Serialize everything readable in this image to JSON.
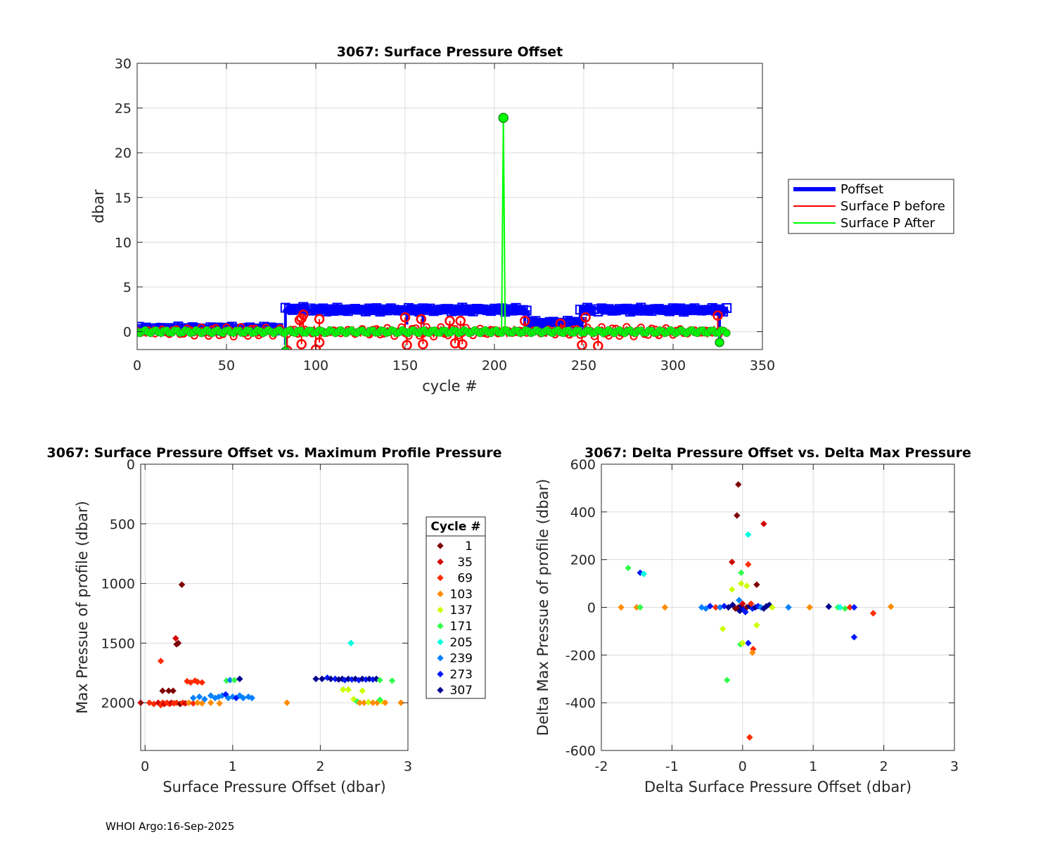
{
  "footer": "WHOI Argo:16-Sep-2025",
  "chart_data": [
    {
      "type": "line",
      "title": "3067: Surface Pressure Offset",
      "xlabel": "cycle #",
      "ylabel": "dbar",
      "xlim": [
        0,
        350
      ],
      "ylim": [
        -2,
        30
      ],
      "xticks": [
        0,
        50,
        100,
        150,
        200,
        250,
        300,
        350
      ],
      "yticks": [
        0,
        5,
        10,
        15,
        20,
        25,
        30
      ],
      "grid": true,
      "legend": {
        "placement": "right",
        "entries": [
          "Poffset",
          "Surface P before",
          "Surface P After"
        ]
      },
      "series": [
        {
          "name": "Poffset",
          "color": "#0000ff",
          "segments": [
            {
              "x": [
                1,
                80
              ],
              "y": 0.35
            },
            {
              "x": [
                83,
                97
              ],
              "y": 2.55
            },
            {
              "x": [
                98,
                218
              ],
              "y": 2.45
            },
            {
              "x": [
                219,
                250
              ],
              "y": 1.0
            },
            {
              "x": [
                248,
                256
              ],
              "y": 2.45
            },
            {
              "x": [
                258,
                330
              ],
              "y": 2.45
            }
          ],
          "spikes_down": [
            {
              "x": 83,
              "y": -1.5
            },
            {
              "x": 151,
              "y": 0.8
            },
            {
              "x": 160,
              "y": 0.8
            },
            {
              "x": 217,
              "y": 0.8
            },
            {
              "x": 219,
              "y": 0.0
            },
            {
              "x": 248,
              "y": 1.5
            },
            {
              "x": 326,
              "y": -1.0
            }
          ]
        },
        {
          "name": "Surface P before",
          "color": "#ff0000",
          "baseline": 0.0,
          "markers": [
            {
              "x": 91,
              "y": 1.3
            },
            {
              "x": 92,
              "y": 1.5
            },
            {
              "x": 93,
              "y": 1.9
            },
            {
              "x": 102,
              "y": 1.4
            },
            {
              "x": 150,
              "y": 1.6
            },
            {
              "x": 159,
              "y": 1.4
            },
            {
              "x": 175,
              "y": 1.2
            },
            {
              "x": 181,
              "y": 1.2
            },
            {
              "x": 217,
              "y": 1.2
            },
            {
              "x": 237,
              "y": 0.9
            },
            {
              "x": 251,
              "y": 1.6
            },
            {
              "x": 325,
              "y": 1.8
            },
            {
              "x": 92,
              "y": -1.4
            },
            {
              "x": 100,
              "y": -2.0
            },
            {
              "x": 102,
              "y": -1.2
            },
            {
              "x": 151,
              "y": -1.5
            },
            {
              "x": 160,
              "y": -1.4
            },
            {
              "x": 178,
              "y": -1.3
            },
            {
              "x": 182,
              "y": -1.4
            },
            {
              "x": 249,
              "y": -1.5
            },
            {
              "x": 258,
              "y": -1.6
            },
            {
              "x": 84,
              "y": -2.1
            }
          ]
        },
        {
          "name": "Surface P After",
          "color": "#00ff00",
          "baseline": 0.0,
          "spike": {
            "x": 205,
            "y": 23.9
          },
          "dips": [
            {
              "x": 83,
              "y": -2.2
            },
            {
              "x": 326,
              "y": -1.2
            }
          ]
        }
      ]
    },
    {
      "type": "scatter",
      "title": "3067: Surface Pressure Offset vs. Maximum Profile Pressure",
      "xlabel": "Surface Pressure Offset (dbar)",
      "ylabel": "Max Pressue of profile (dbar)",
      "xlim": [
        -0.05,
        3
      ],
      "ylim": [
        2400,
        0
      ],
      "yreversed": true,
      "xticks": [
        0,
        1,
        2,
        3
      ],
      "yticks": [
        0,
        500,
        1000,
        1500,
        2000
      ],
      "grid": true,
      "legend": {
        "title": "Cycle #",
        "entries": [
          {
            "label": "1",
            "color": "#7f0000"
          },
          {
            "label": "35",
            "color": "#d40000"
          },
          {
            "label": "69",
            "color": "#ff2a00"
          },
          {
            "label": "103",
            "color": "#ff8c00"
          },
          {
            "label": "137",
            "color": "#ccff00"
          },
          {
            "label": "171",
            "color": "#33ff4d"
          },
          {
            "label": "205",
            "color": "#00ffe0"
          },
          {
            "label": "239",
            "color": "#0080ff"
          },
          {
            "label": "273",
            "color": "#0018ff"
          },
          {
            "label": "307",
            "color": "#00008f"
          }
        ]
      },
      "points": [
        {
          "x": -0.05,
          "y": 2000,
          "c": "#d40000"
        },
        {
          "x": 0.05,
          "y": 2000,
          "c": "#ff2a00"
        },
        {
          "x": 0.1,
          "y": 2010,
          "c": "#ff2a00"
        },
        {
          "x": 0.15,
          "y": 2000,
          "c": "#d40000"
        },
        {
          "x": 0.18,
          "y": 2020,
          "c": "#ff2a00"
        },
        {
          "x": 0.2,
          "y": 2000,
          "c": "#ff2a00"
        },
        {
          "x": 0.22,
          "y": 2010,
          "c": "#d40000"
        },
        {
          "x": 0.25,
          "y": 2000,
          "c": "#ff2a00"
        },
        {
          "x": 0.28,
          "y": 2010,
          "c": "#ff2a00"
        },
        {
          "x": 0.3,
          "y": 2000,
          "c": "#d40000"
        },
        {
          "x": 0.33,
          "y": 2005,
          "c": "#ff2a00"
        },
        {
          "x": 0.36,
          "y": 2000,
          "c": "#ff2a00"
        },
        {
          "x": 0.4,
          "y": 2010,
          "c": "#7f0000"
        },
        {
          "x": 0.43,
          "y": 2000,
          "c": "#ff2a00"
        },
        {
          "x": 0.46,
          "y": 2005,
          "c": "#d40000"
        },
        {
          "x": 0.5,
          "y": 2000,
          "c": "#ff8c00"
        },
        {
          "x": 0.55,
          "y": 2005,
          "c": "#ff2a00"
        },
        {
          "x": 0.6,
          "y": 2000,
          "c": "#ff8c00"
        },
        {
          "x": 0.65,
          "y": 2005,
          "c": "#ff8c00"
        },
        {
          "x": 0.75,
          "y": 2000,
          "c": "#ff8c00"
        },
        {
          "x": 0.85,
          "y": 2005,
          "c": "#ff8c00"
        },
        {
          "x": 1.62,
          "y": 2000,
          "c": "#ff8c00"
        },
        {
          "x": 2.92,
          "y": 2000,
          "c": "#ff8c00"
        },
        {
          "x": 0.42,
          "y": 1010,
          "c": "#7f0000"
        },
        {
          "x": 0.35,
          "y": 1460,
          "c": "#d40000"
        },
        {
          "x": 0.36,
          "y": 1510,
          "c": "#7f0000"
        },
        {
          "x": 0.38,
          "y": 1500,
          "c": "#7f0000"
        },
        {
          "x": 0.18,
          "y": 1650,
          "c": "#ff2a00"
        },
        {
          "x": 0.2,
          "y": 1900,
          "c": "#7f0000"
        },
        {
          "x": 0.27,
          "y": 1900,
          "c": "#7f0000"
        },
        {
          "x": 0.32,
          "y": 1900,
          "c": "#7f0000"
        },
        {
          "x": 0.48,
          "y": 1820,
          "c": "#ff2a00"
        },
        {
          "x": 0.52,
          "y": 1830,
          "c": "#ff2a00"
        },
        {
          "x": 0.57,
          "y": 1815,
          "c": "#ff2a00"
        },
        {
          "x": 0.6,
          "y": 1825,
          "c": "#ff2a00"
        },
        {
          "x": 0.65,
          "y": 1830,
          "c": "#ff2a00"
        },
        {
          "x": 0.55,
          "y": 1960,
          "c": "#0080ff"
        },
        {
          "x": 0.62,
          "y": 1950,
          "c": "#0080ff"
        },
        {
          "x": 0.68,
          "y": 1970,
          "c": "#0080ff"
        },
        {
          "x": 0.75,
          "y": 1940,
          "c": "#0080ff"
        },
        {
          "x": 0.8,
          "y": 1960,
          "c": "#0080ff"
        },
        {
          "x": 0.84,
          "y": 1950,
          "c": "#0080ff"
        },
        {
          "x": 0.88,
          "y": 1940,
          "c": "#0080ff"
        },
        {
          "x": 0.92,
          "y": 1930,
          "c": "#0018ff"
        },
        {
          "x": 0.95,
          "y": 1960,
          "c": "#0080ff"
        },
        {
          "x": 1.0,
          "y": 1950,
          "c": "#0080ff"
        },
        {
          "x": 1.04,
          "y": 1960,
          "c": "#0018ff"
        },
        {
          "x": 1.08,
          "y": 1940,
          "c": "#0080ff"
        },
        {
          "x": 1.12,
          "y": 1960,
          "c": "#0080ff"
        },
        {
          "x": 1.18,
          "y": 1950,
          "c": "#0080ff"
        },
        {
          "x": 1.22,
          "y": 1960,
          "c": "#0080ff"
        },
        {
          "x": 0.93,
          "y": 1815,
          "c": "#33ff4d"
        },
        {
          "x": 0.97,
          "y": 1810,
          "c": "#0080ff"
        },
        {
          "x": 1.02,
          "y": 1810,
          "c": "#33ff4d"
        },
        {
          "x": 1.08,
          "y": 1800,
          "c": "#00008f"
        },
        {
          "x": 2.35,
          "y": 1500,
          "c": "#00ffe0"
        },
        {
          "x": 1.95,
          "y": 1800,
          "c": "#00008f"
        },
        {
          "x": 2.02,
          "y": 1800,
          "c": "#00008f"
        },
        {
          "x": 2.08,
          "y": 1790,
          "c": "#0018ff"
        },
        {
          "x": 2.12,
          "y": 1800,
          "c": "#00008f"
        },
        {
          "x": 2.17,
          "y": 1800,
          "c": "#0018ff"
        },
        {
          "x": 2.21,
          "y": 1805,
          "c": "#00008f"
        },
        {
          "x": 2.25,
          "y": 1800,
          "c": "#00008f"
        },
        {
          "x": 2.28,
          "y": 1810,
          "c": "#0018ff"
        },
        {
          "x": 2.32,
          "y": 1800,
          "c": "#00008f"
        },
        {
          "x": 2.36,
          "y": 1805,
          "c": "#0018ff"
        },
        {
          "x": 2.4,
          "y": 1800,
          "c": "#00008f"
        },
        {
          "x": 2.44,
          "y": 1810,
          "c": "#0018ff"
        },
        {
          "x": 2.48,
          "y": 1800,
          "c": "#00008f"
        },
        {
          "x": 2.52,
          "y": 1805,
          "c": "#0018ff"
        },
        {
          "x": 2.56,
          "y": 1800,
          "c": "#00008f"
        },
        {
          "x": 2.6,
          "y": 1805,
          "c": "#0018ff"
        },
        {
          "x": 2.64,
          "y": 1800,
          "c": "#00008f"
        },
        {
          "x": 2.68,
          "y": 1810,
          "c": "#33ff4d"
        },
        {
          "x": 2.82,
          "y": 1815,
          "c": "#33ff4d"
        },
        {
          "x": 2.26,
          "y": 1890,
          "c": "#ccff00"
        },
        {
          "x": 2.32,
          "y": 1890,
          "c": "#ccff00"
        },
        {
          "x": 2.48,
          "y": 1900,
          "c": "#ccff00"
        },
        {
          "x": 2.38,
          "y": 1970,
          "c": "#ccff00"
        },
        {
          "x": 2.42,
          "y": 1990,
          "c": "#33ff4d"
        },
        {
          "x": 2.45,
          "y": 2000,
          "c": "#ff8c00"
        },
        {
          "x": 2.5,
          "y": 2000,
          "c": "#ff8c00"
        },
        {
          "x": 2.55,
          "y": 1995,
          "c": "#ccff00"
        },
        {
          "x": 2.6,
          "y": 2000,
          "c": "#ff8c00"
        },
        {
          "x": 2.65,
          "y": 2000,
          "c": "#ff8c00"
        },
        {
          "x": 2.7,
          "y": 1990,
          "c": "#ccff00"
        },
        {
          "x": 2.68,
          "y": 1975,
          "c": "#33ff4d"
        },
        {
          "x": 2.74,
          "y": 2000,
          "c": "#ff8c00"
        }
      ]
    },
    {
      "type": "scatter",
      "title": "3067: Delta Pressure Offset vs. Delta Max Pressure",
      "xlabel": "Delta Surface Pressure Offset (dbar)",
      "ylabel": "Delta Max Pressue of profile (dbar)",
      "xlim": [
        -2,
        3
      ],
      "ylim": [
        -600,
        600
      ],
      "xticks": [
        -2,
        -1,
        0,
        1,
        2,
        3
      ],
      "yticks": [
        -600,
        -400,
        -200,
        0,
        200,
        400,
        600
      ],
      "grid": true,
      "points": [
        {
          "x": -0.06,
          "y": 515,
          "c": "#7f0000"
        },
        {
          "x": -0.08,
          "y": 385,
          "c": "#7f0000"
        },
        {
          "x": 0.3,
          "y": 350,
          "c": "#d40000"
        },
        {
          "x": 0.08,
          "y": 305,
          "c": "#00ffe0"
        },
        {
          "x": -0.15,
          "y": 190,
          "c": "#d40000"
        },
        {
          "x": 0.08,
          "y": 180,
          "c": "#ff2a00"
        },
        {
          "x": -1.62,
          "y": 165,
          "c": "#33ff4d"
        },
        {
          "x": -1.45,
          "y": 145,
          "c": "#0018ff"
        },
        {
          "x": -1.4,
          "y": 140,
          "c": "#00ffe0"
        },
        {
          "x": -0.02,
          "y": 145,
          "c": "#33ff4d"
        },
        {
          "x": -0.02,
          "y": 100,
          "c": "#ccff00"
        },
        {
          "x": 0.06,
          "y": 90,
          "c": "#ccff00"
        },
        {
          "x": 0.2,
          "y": 95,
          "c": "#7f0000"
        },
        {
          "x": -0.15,
          "y": 75,
          "c": "#ccff00"
        },
        {
          "x": -0.05,
          "y": 30,
          "c": "#0080ff"
        },
        {
          "x": -1.72,
          "y": 0,
          "c": "#ff8c00"
        },
        {
          "x": -1.5,
          "y": 0,
          "c": "#ff8c00"
        },
        {
          "x": -1.45,
          "y": 0,
          "c": "#33ff4d"
        },
        {
          "x": -1.1,
          "y": 0,
          "c": "#ff8c00"
        },
        {
          "x": -0.58,
          "y": 0,
          "c": "#0080ff"
        },
        {
          "x": -0.52,
          "y": -5,
          "c": "#0080ff"
        },
        {
          "x": -0.46,
          "y": 5,
          "c": "#0018ff"
        },
        {
          "x": -0.38,
          "y": 0,
          "c": "#ff2a00"
        },
        {
          "x": -0.32,
          "y": 0,
          "c": "#0080ff"
        },
        {
          "x": -0.26,
          "y": 5,
          "c": "#0018ff"
        },
        {
          "x": -0.2,
          "y": 0,
          "c": "#00008f"
        },
        {
          "x": -0.14,
          "y": 10,
          "c": "#00008f"
        },
        {
          "x": -0.1,
          "y": -5,
          "c": "#7f0000"
        },
        {
          "x": -0.06,
          "y": 0,
          "c": "#7f0000"
        },
        {
          "x": -0.02,
          "y": 5,
          "c": "#00008f"
        },
        {
          "x": 0.02,
          "y": -10,
          "c": "#0018ff"
        },
        {
          "x": 0.06,
          "y": 0,
          "c": "#7f0000"
        },
        {
          "x": 0.1,
          "y": 5,
          "c": "#00008f"
        },
        {
          "x": 0.14,
          "y": -5,
          "c": "#0018ff"
        },
        {
          "x": 0.18,
          "y": 0,
          "c": "#00008f"
        },
        {
          "x": 0.22,
          "y": 5,
          "c": "#0018ff"
        },
        {
          "x": 0.26,
          "y": 0,
          "c": "#0080ff"
        },
        {
          "x": 0.3,
          "y": -5,
          "c": "#00008f"
        },
        {
          "x": 0.34,
          "y": 5,
          "c": "#00008f"
        },
        {
          "x": 0.38,
          "y": 10,
          "c": "#00008f"
        },
        {
          "x": 0.42,
          "y": 0,
          "c": "#ccff00"
        },
        {
          "x": 0.0,
          "y": 15,
          "c": "#d40000"
        },
        {
          "x": 0.04,
          "y": -20,
          "c": "#0018ff"
        },
        {
          "x": -0.04,
          "y": -15,
          "c": "#00008f"
        },
        {
          "x": 0.12,
          "y": 15,
          "c": "#ff2a00"
        },
        {
          "x": 0.65,
          "y": 0,
          "c": "#0080ff"
        },
        {
          "x": 0.95,
          "y": 0,
          "c": "#ff8c00"
        },
        {
          "x": 1.22,
          "y": 3,
          "c": "#00008f"
        },
        {
          "x": 1.35,
          "y": 0,
          "c": "#33ff4d"
        },
        {
          "x": 1.38,
          "y": 0,
          "c": "#00ffe0"
        },
        {
          "x": 1.45,
          "y": -5,
          "c": "#33ff4d"
        },
        {
          "x": 1.52,
          "y": 0,
          "c": "#ff2a00"
        },
        {
          "x": 1.58,
          "y": 0,
          "c": "#0018ff"
        },
        {
          "x": 1.85,
          "y": -25,
          "c": "#ff2a00"
        },
        {
          "x": 2.1,
          "y": 3,
          "c": "#ff8c00"
        },
        {
          "x": -0.28,
          "y": -90,
          "c": "#ccff00"
        },
        {
          "x": 0.2,
          "y": -75,
          "c": "#ccff00"
        },
        {
          "x": 0.08,
          "y": -150,
          "c": "#0018ff"
        },
        {
          "x": -0.03,
          "y": -155,
          "c": "#33ff4d"
        },
        {
          "x": 0.0,
          "y": -150,
          "c": "#ccff00"
        },
        {
          "x": 0.15,
          "y": -175,
          "c": "#ff2a00"
        },
        {
          "x": 0.14,
          "y": -190,
          "c": "#ff8c00"
        },
        {
          "x": 1.58,
          "y": -125,
          "c": "#0018ff"
        },
        {
          "x": -0.22,
          "y": -305,
          "c": "#33ff4d"
        },
        {
          "x": 0.1,
          "y": -545,
          "c": "#ff2a00"
        }
      ]
    }
  ]
}
